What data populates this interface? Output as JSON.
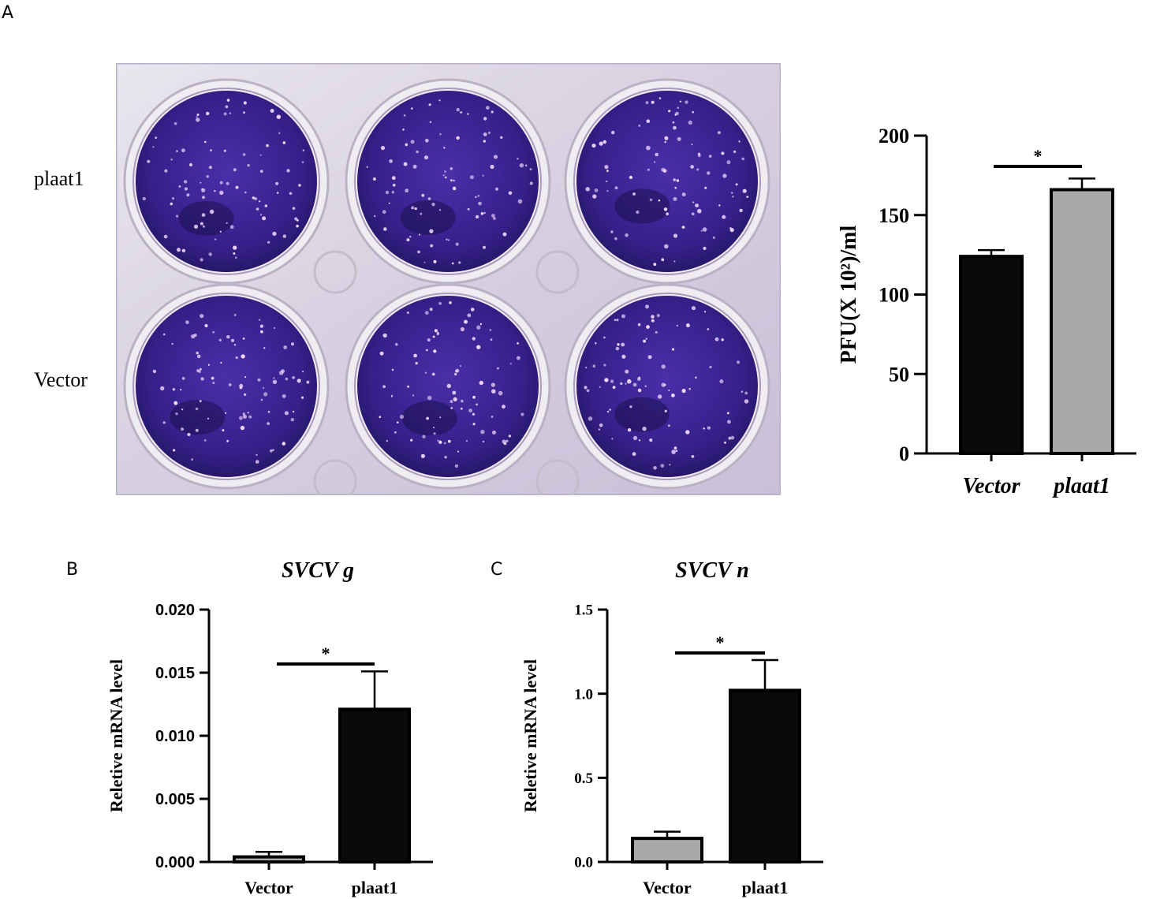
{
  "figure": {
    "panels": {
      "A": {
        "letter": "A"
      },
      "B": {
        "letter": "B"
      },
      "C": {
        "letter": "C"
      }
    },
    "plate": {
      "row_labels": [
        "plaat1",
        "Vector"
      ],
      "well_color": "#3a1f8e",
      "plaque_color": "#f3d8ff"
    }
  },
  "chart_data": [
    {
      "type": "bar",
      "panel": "A",
      "title": "",
      "xlabel": "",
      "ylabel": "PFU(X 10²)/ml",
      "categories": [
        "Vector",
        "plaat1"
      ],
      "values": [
        124,
        166
      ],
      "errors": [
        4,
        7
      ],
      "colors": [
        "#0a0a0a",
        "#a9a9a9"
      ],
      "ylim": [
        0,
        200
      ],
      "yticks": [
        "0",
        "50",
        "100",
        "150",
        "200"
      ],
      "significance": "*",
      "italic_categories": true,
      "grid": false
    },
    {
      "type": "bar",
      "panel": "B",
      "title": "SVCV g",
      "xlabel": "",
      "ylabel": "Reletive mRNA level",
      "categories": [
        "Vector",
        "plaat1"
      ],
      "values": [
        0.0004,
        0.0121
      ],
      "errors": [
        0.0004,
        0.003
      ],
      "colors": [
        "#a9a9a9",
        "#0a0a0a"
      ],
      "ylim": [
        0,
        0.02
      ],
      "yticks": [
        "0.000",
        "0.005",
        "0.010",
        "0.015",
        "0.020"
      ],
      "significance": "*",
      "italic_categories": false,
      "grid": false
    },
    {
      "type": "bar",
      "panel": "C",
      "title": "SVCV n",
      "xlabel": "",
      "ylabel": "Reletive mRNA level",
      "categories": [
        "Vector",
        "plaat1"
      ],
      "values": [
        0.14,
        1.02
      ],
      "errors": [
        0.04,
        0.18
      ],
      "colors": [
        "#a9a9a9",
        "#0a0a0a"
      ],
      "ylim": [
        0,
        1.5
      ],
      "yticks": [
        "0.0",
        "0.5",
        "1.0",
        "1.5"
      ],
      "significance": "*",
      "italic_categories": false,
      "grid": false
    }
  ]
}
